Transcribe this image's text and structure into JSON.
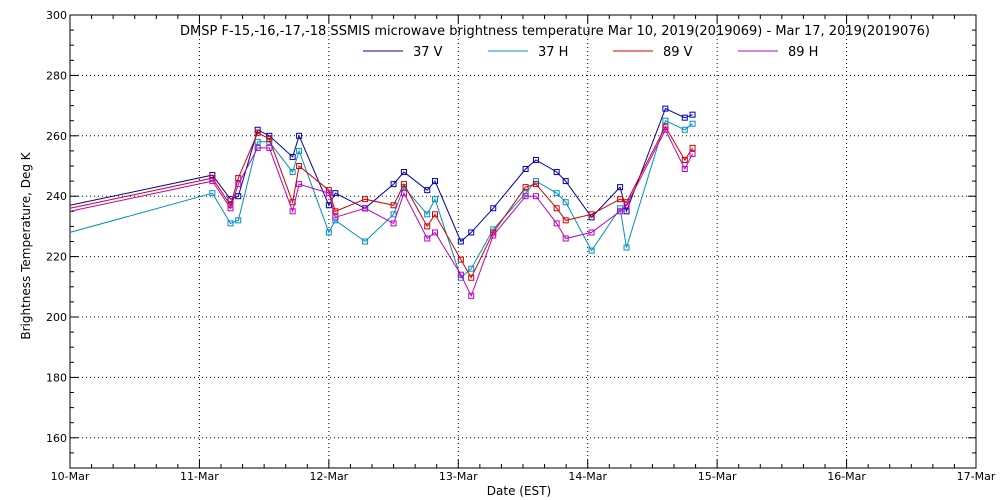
{
  "chart_data": {
    "type": "line",
    "title": "DMSP F-15,-16,-17,-18 SSMIS microwave brightness temperature Mar 10, 2019(2019069) - Mar 17, 2019(2019076)",
    "xlabel": "Date (EST)",
    "ylabel": "Brightness Temperature, Deg K",
    "xlim": [
      0,
      7
    ],
    "ylim": [
      150,
      300
    ],
    "x_ticks": [
      0,
      1,
      2,
      3,
      4,
      5,
      6,
      7
    ],
    "x_tick_labels": [
      "10-Mar",
      "11-Mar",
      "12-Mar",
      "13-Mar",
      "14-Mar",
      "15-Mar",
      "16-Mar",
      "17-Mar"
    ],
    "y_ticks": [
      160,
      180,
      200,
      220,
      240,
      260,
      280,
      300
    ],
    "grid": true,
    "legend_position": "top-center",
    "series": [
      {
        "name": "37 V",
        "color": "#0000b0",
        "points": [
          [
            0,
            237
          ],
          [
            1.1,
            247
          ],
          [
            1.24,
            239
          ],
          [
            1.3,
            240
          ],
          [
            1.45,
            262
          ],
          [
            1.54,
            260
          ],
          [
            1.72,
            253
          ],
          [
            1.77,
            260
          ],
          [
            2.0,
            237
          ],
          [
            2.05,
            241
          ],
          [
            2.28,
            236
          ],
          [
            2.5,
            244
          ],
          [
            2.58,
            248
          ],
          [
            2.76,
            242
          ],
          [
            2.82,
            245
          ],
          [
            3.02,
            225
          ],
          [
            3.1,
            228
          ],
          [
            3.27,
            236
          ],
          [
            3.52,
            249
          ],
          [
            3.6,
            252
          ],
          [
            3.76,
            248
          ],
          [
            3.83,
            245
          ],
          [
            4.03,
            233
          ],
          [
            4.25,
            243
          ],
          [
            4.3,
            235
          ],
          [
            4.6,
            269
          ],
          [
            4.75,
            266
          ],
          [
            4.81,
            267
          ]
        ]
      },
      {
        "name": "37 H",
        "color": "#0090c0",
        "points": [
          [
            0,
            228
          ],
          [
            1.1,
            241
          ],
          [
            1.24,
            231
          ],
          [
            1.3,
            232
          ],
          [
            1.45,
            258
          ],
          [
            1.54,
            258
          ],
          [
            1.72,
            248
          ],
          [
            1.77,
            255
          ],
          [
            2.0,
            228
          ],
          [
            2.05,
            232
          ],
          [
            2.28,
            225
          ],
          [
            2.5,
            234
          ],
          [
            2.58,
            243
          ],
          [
            2.76,
            234
          ],
          [
            2.82,
            239
          ],
          [
            3.02,
            213
          ],
          [
            3.1,
            216
          ],
          [
            3.27,
            229
          ],
          [
            3.52,
            241
          ],
          [
            3.6,
            245
          ],
          [
            3.76,
            241
          ],
          [
            3.83,
            238
          ],
          [
            4.03,
            222
          ],
          [
            4.25,
            236
          ],
          [
            4.3,
            223
          ],
          [
            4.6,
            265
          ],
          [
            4.75,
            262
          ],
          [
            4.81,
            264
          ]
        ]
      },
      {
        "name": "89 V",
        "color": "#d00000",
        "points": [
          [
            0,
            236
          ],
          [
            1.1,
            246
          ],
          [
            1.24,
            237
          ],
          [
            1.3,
            246
          ],
          [
            1.45,
            261
          ],
          [
            1.54,
            259
          ],
          [
            1.72,
            238
          ],
          [
            1.77,
            250
          ],
          [
            2.0,
            242
          ],
          [
            2.05,
            235
          ],
          [
            2.28,
            239
          ],
          [
            2.5,
            237
          ],
          [
            2.58,
            244
          ],
          [
            2.76,
            230
          ],
          [
            2.82,
            234
          ],
          [
            3.02,
            219
          ],
          [
            3.1,
            213
          ],
          [
            3.27,
            228
          ],
          [
            3.52,
            243
          ],
          [
            3.6,
            244
          ],
          [
            3.76,
            236
          ],
          [
            3.83,
            232
          ],
          [
            4.03,
            234
          ],
          [
            4.25,
            239
          ],
          [
            4.3,
            238
          ],
          [
            4.6,
            263
          ],
          [
            4.75,
            252
          ],
          [
            4.81,
            256
          ]
        ]
      },
      {
        "name": "89 H",
        "color": "#c000c0",
        "points": [
          [
            0,
            235
          ],
          [
            1.1,
            245
          ],
          [
            1.24,
            236
          ],
          [
            1.3,
            244
          ],
          [
            1.45,
            256
          ],
          [
            1.54,
            256
          ],
          [
            1.72,
            235
          ],
          [
            1.77,
            244
          ],
          [
            2.0,
            241
          ],
          [
            2.05,
            233
          ],
          [
            2.28,
            236
          ],
          [
            2.5,
            231
          ],
          [
            2.58,
            241
          ],
          [
            2.76,
            226
          ],
          [
            2.82,
            228
          ],
          [
            3.02,
            214
          ],
          [
            3.1,
            207
          ],
          [
            3.27,
            227
          ],
          [
            3.52,
            240
          ],
          [
            3.6,
            240
          ],
          [
            3.76,
            231
          ],
          [
            3.83,
            226
          ],
          [
            4.03,
            228
          ],
          [
            4.25,
            235
          ],
          [
            4.3,
            237
          ],
          [
            4.6,
            262
          ],
          [
            4.75,
            249
          ],
          [
            4.81,
            254
          ]
        ]
      }
    ]
  }
}
